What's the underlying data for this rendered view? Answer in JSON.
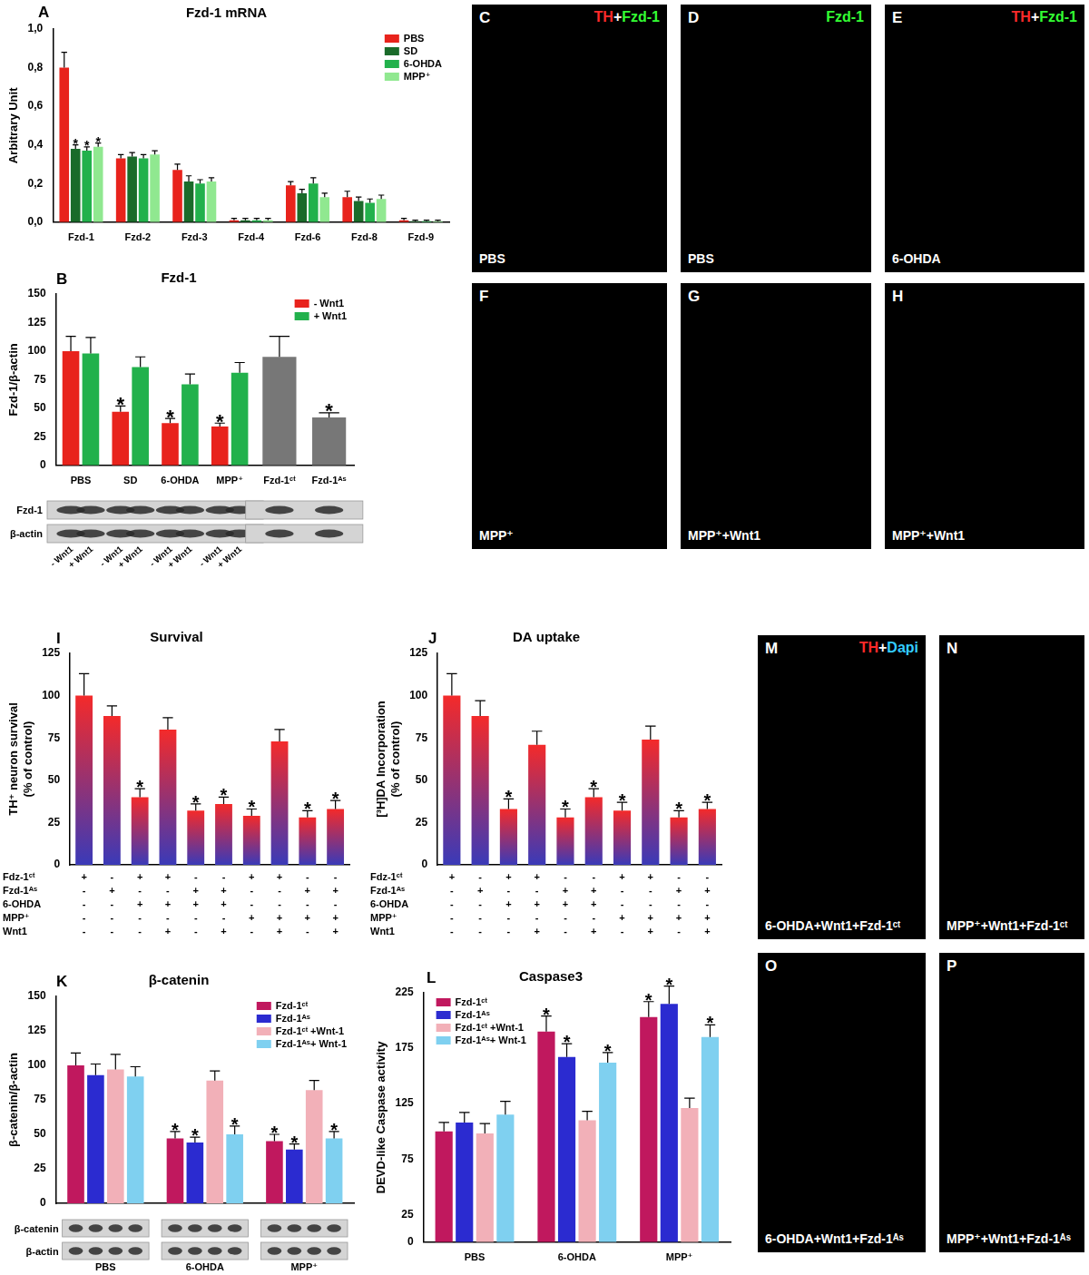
{
  "chart_data": [
    {
      "panel": "A",
      "type": "bar",
      "title": "Fzd-1 mRNA",
      "y_label": "Arbitrary Unit",
      "categories": [
        "Fzd-1",
        "Fzd-2",
        "Fzd-3",
        "Fzd-4",
        "Fzd-6",
        "Fzd-8",
        "Fzd-9"
      ],
      "series": [
        {
          "name": "PBS",
          "color": "#e8231c",
          "values": [
            0.8,
            0.33,
            0.27,
            0.01,
            0.19,
            0.13,
            0.01
          ],
          "errors": [
            0.08,
            0.02,
            0.03,
            0.01,
            0.02,
            0.03,
            0.01
          ]
        },
        {
          "name": "SD",
          "color": "#1a6b2a",
          "values": [
            0.38,
            0.34,
            0.21,
            0.01,
            0.15,
            0.11,
            0.005
          ],
          "errors": [
            0.02,
            0.02,
            0.03,
            0.01,
            0.02,
            0.02,
            0.005
          ],
          "marks": [
            "*",
            null,
            null,
            null,
            null,
            null,
            null
          ]
        },
        {
          "name": "6-OHDA",
          "color": "#22b14c",
          "values": [
            0.37,
            0.33,
            0.2,
            0.01,
            0.2,
            0.1,
            0.005
          ],
          "errors": [
            0.02,
            0.02,
            0.02,
            0.01,
            0.03,
            0.02,
            0.005
          ],
          "marks": [
            "*",
            null,
            null,
            null,
            null,
            null,
            null
          ]
        },
        {
          "name": "MPP⁺",
          "color": "#90e890",
          "values": [
            0.39,
            0.35,
            0.21,
            0.01,
            0.13,
            0.12,
            0.005
          ],
          "errors": [
            0.02,
            0.02,
            0.02,
            0.01,
            0.02,
            0.02,
            0.005
          ],
          "marks": [
            "*",
            null,
            null,
            null,
            null,
            null,
            null
          ]
        }
      ],
      "ylim": [
        0,
        1
      ],
      "yticks": [
        {
          "value": 0,
          "label": "0,0"
        },
        {
          "value": 0.2,
          "label": "0,2"
        },
        {
          "value": 0.4,
          "label": "0,4"
        },
        {
          "value": 0.6,
          "label": "0,6"
        },
        {
          "value": 0.8,
          "label": "0,8"
        },
        {
          "value": 1,
          "label": "1,0"
        }
      ],
      "grid": false,
      "legend": "top right"
    },
    {
      "panel": "B",
      "type": "bar",
      "title": "Fzd-1",
      "y_label": "Fzd-1/β-actin",
      "categories": [
        "PBS",
        "SD",
        "6-OHDA",
        "MPP⁺",
        "Fzd-1ᶜᵗ",
        "Fzd-1ᴬˢ"
      ],
      "series": [
        {
          "name": "- Wnt1",
          "color": "#e8231c",
          "values": [
            100,
            47,
            37,
            34,
            null,
            null
          ],
          "errors": [
            13,
            5,
            4,
            3,
            null,
            null
          ],
          "marks": [
            null,
            "*",
            "*",
            "*",
            null,
            null
          ]
        },
        {
          "name": "+ Wnt1",
          "color": "#22b14c",
          "values": [
            98,
            86,
            71,
            81,
            null,
            null
          ],
          "errors": [
            14,
            9,
            9,
            9,
            null,
            null
          ]
        },
        {
          "color": "#777777",
          "values": [
            null,
            null,
            null,
            null,
            95,
            42
          ],
          "errors": [
            null,
            null,
            null,
            null,
            18,
            4
          ],
          "marks": [
            null,
            null,
            null,
            null,
            null,
            "*"
          ]
        }
      ],
      "ylim": [
        0,
        150
      ],
      "yticks": [
        0,
        25,
        50,
        75,
        100,
        125,
        150
      ],
      "grid": false,
      "legend": "top right"
    },
    {
      "panel": "I",
      "type": "bar",
      "title": "Survival",
      "y_label": [
        "TH⁺ neuron survival",
        "(% of control)"
      ],
      "categories": [
        null,
        null,
        null,
        null,
        null,
        null,
        null,
        null,
        null,
        null
      ],
      "series": [
        {
          "color": "#f42a2a",
          "values": [
            100,
            88,
            40,
            80,
            32,
            36,
            29,
            73,
            28,
            33
          ],
          "errors": [
            13,
            6,
            5,
            7,
            4,
            4,
            4,
            7,
            4,
            5
          ],
          "marks": [
            null,
            null,
            "*",
            null,
            "*",
            "*",
            "*",
            null,
            "*",
            "*"
          ]
        }
      ],
      "conditions": [
        {
          "label": "Fdz-1ᶜᵗ",
          "values": [
            "+",
            "-",
            "+",
            "+",
            "-",
            "-",
            "+",
            "+",
            "-",
            "-"
          ]
        },
        {
          "label": "Fzd-1ᴬˢ",
          "values": [
            "-",
            "+",
            "-",
            "-",
            "+",
            "+",
            "-",
            "-",
            "+",
            "+"
          ]
        },
        {
          "label": "6-OHDA",
          "values": [
            "-",
            "-",
            "+",
            "+",
            "+",
            "+",
            "-",
            "-",
            "-",
            "-"
          ]
        },
        {
          "label": "MPP⁺",
          "values": [
            "-",
            "-",
            "-",
            "-",
            "-",
            "-",
            "+",
            "+",
            "+",
            "+"
          ]
        },
        {
          "label": "Wnt1",
          "values": [
            "-",
            "-",
            "-",
            "+",
            "-",
            "+",
            "-",
            "+",
            "-",
            "+"
          ]
        }
      ],
      "ylim": [
        0,
        125
      ],
      "yticks": [
        0,
        25,
        50,
        75,
        100,
        125
      ],
      "grid": false,
      "tick_labels": "y"
    },
    {
      "panel": "J",
      "type": "bar",
      "title": "DA uptake",
      "y_label": [
        "[³H]DA Incorporation",
        "(% of control)"
      ],
      "categories": [
        null,
        null,
        null,
        null,
        null,
        null,
        null,
        null,
        null,
        null
      ],
      "series": [
        {
          "color": "#f42a2a",
          "values": [
            100,
            88,
            33,
            71,
            28,
            40,
            32,
            74,
            28,
            33
          ],
          "errors": [
            13,
            9,
            6,
            8,
            5,
            5,
            5,
            8,
            4,
            4
          ],
          "marks": [
            null,
            null,
            "*",
            null,
            "*",
            "*",
            "*",
            null,
            "*",
            "*"
          ]
        }
      ],
      "conditions": [
        {
          "label": "Fdz-1ᶜᵗ",
          "values": [
            "+",
            "-",
            "+",
            "+",
            "-",
            "-",
            "+",
            "+",
            "-",
            "-"
          ]
        },
        {
          "label": "Fzd-1ᴬˢ",
          "values": [
            "-",
            "+",
            "-",
            "-",
            "+",
            "+",
            "-",
            "-",
            "+",
            "+"
          ]
        },
        {
          "label": "6-OHDA",
          "values": [
            "-",
            "-",
            "+",
            "+",
            "+",
            "+",
            "-",
            "-",
            "-",
            "-"
          ]
        },
        {
          "label": "MPP⁺",
          "values": [
            "-",
            "-",
            "-",
            "-",
            "-",
            "-",
            "+",
            "+",
            "+",
            "+"
          ]
        },
        {
          "label": "Wnt1",
          "values": [
            "-",
            "-",
            "-",
            "+",
            "-",
            "+",
            "-",
            "+",
            "-",
            "+"
          ]
        }
      ],
      "ylim": [
        0,
        125
      ],
      "yticks": [
        0,
        25,
        50,
        75,
        100,
        125
      ],
      "grid": false,
      "tick_labels": "y"
    },
    {
      "panel": "K",
      "type": "bar",
      "title": "β-catenin",
      "y_label": "β-catenin/β-actin",
      "categories": [
        "PBS",
        "6-OHDA",
        "MPP⁺"
      ],
      "series": [
        {
          "name": "Fzd-1ᶜᵗ",
          "color": "#c0185e",
          "values": [
            100,
            47,
            45
          ],
          "errors": [
            9,
            5,
            5
          ],
          "marks": [
            null,
            "*",
            "*"
          ]
        },
        {
          "name": "Fzd-1ᴬˢ",
          "color": "#2b2bd0",
          "values": [
            93,
            44,
            39
          ],
          "errors": [
            8,
            4,
            4
          ],
          "marks": [
            null,
            "*",
            "*"
          ]
        },
        {
          "name": "Fzd-1ᶜᵗ +Wnt-1",
          "color": "#f2b0b8",
          "values": [
            97,
            89,
            82
          ],
          "errors": [
            11,
            7,
            7
          ]
        },
        {
          "name": "Fzd-1ᴬˢ+ Wnt-1",
          "color": "#7fd0f0",
          "values": [
            92,
            50,
            47
          ],
          "errors": [
            7,
            6,
            5
          ],
          "marks": [
            null,
            "*",
            "*"
          ]
        }
      ],
      "ylim": [
        0,
        150
      ],
      "yticks": [
        0,
        25,
        50,
        75,
        100,
        125,
        150
      ],
      "grid": false,
      "legend": "top right",
      "tick_labels": "y"
    },
    {
      "panel": "L",
      "type": "bar",
      "title": "Caspase3",
      "y_label": "DEVD-like Caspase activity",
      "categories": [
        "PBS",
        "6-OHDA",
        "MPP⁺"
      ],
      "series": [
        {
          "name": "Fzd-1ᶜᵗ",
          "color": "#c0185e",
          "values": [
            100,
            190,
            203
          ],
          "errors": [
            8,
            14,
            14
          ],
          "marks": [
            null,
            "*",
            "*"
          ]
        },
        {
          "name": "Fzd-1ᴬˢ",
          "color": "#2b2bd0",
          "values": [
            108,
            167,
            215
          ],
          "errors": [
            9,
            12,
            16
          ],
          "marks": [
            null,
            "*",
            "*"
          ]
        },
        {
          "name": "Fzd-1ᶜᵗ +Wnt-1",
          "color": "#f2b0b8",
          "values": [
            98,
            110,
            121
          ],
          "errors": [
            9,
            8,
            9
          ]
        },
        {
          "name": "Fzd-1ᴬˢ+ Wnt-1",
          "color": "#7fd0f0",
          "values": [
            115,
            162,
            185
          ],
          "errors": [
            12,
            9,
            11
          ],
          "marks": [
            null,
            "*",
            "*"
          ]
        }
      ],
      "ylim": [
        0,
        225
      ],
      "yticks": [
        0,
        25,
        75,
        125,
        175,
        225
      ],
      "grid": false,
      "legend": "top left"
    }
  ],
  "image_panels": [
    {
      "panel": "C",
      "heading": [
        {
          "text": "TH",
          "color": "#ff2a2a"
        },
        {
          "text": "+",
          "color": "#ffffff"
        },
        {
          "text": "Fzd-1",
          "color": "#33ff33"
        }
      ],
      "caption": "PBS"
    },
    {
      "panel": "D",
      "heading": [
        {
          "text": "Fzd-1",
          "color": "#33ff33"
        }
      ],
      "caption": "PBS"
    },
    {
      "panel": "E",
      "heading": [
        {
          "text": "TH",
          "color": "#ff2a2a"
        },
        {
          "text": "+",
          "color": "#ffffff"
        },
        {
          "text": "Fzd-1",
          "color": "#33ff33"
        }
      ],
      "caption": "6-OHDA"
    },
    {
      "panel": "F",
      "caption": "MPP⁺"
    },
    {
      "panel": "G",
      "caption": "MPP⁺+Wnt1"
    },
    {
      "panel": "H",
      "caption": "MPP⁺+Wnt1"
    },
    {
      "panel": "M",
      "heading": [
        {
          "text": "TH",
          "color": "#ff2a2a"
        },
        {
          "text": "+",
          "color": "#ffffff"
        },
        {
          "text": "Dapi",
          "color": "#33ccff"
        }
      ],
      "caption": "6-OHDA+Wnt1+Fzd-1ᶜᵗ"
    },
    {
      "panel": "N",
      "caption": "MPP⁺+Wnt1+Fzd-1ᶜᵗ"
    },
    {
      "panel": "O",
      "caption": "6-OHDA+Wnt1+Fzd-1ᴬˢ"
    },
    {
      "panel": "P",
      "caption": "MPP⁺+Wnt1+Fzd-1ᴬˢ"
    }
  ],
  "blots": [
    {
      "panel": "B",
      "rows": [
        "Fzd-1",
        "β-actin"
      ],
      "lane_labels": [
        "- Wnt1",
        "+ Wnt1",
        "- Wnt1",
        "+ Wnt1",
        "- Wnt1",
        "+ Wnt1",
        "- Wnt1",
        "+ Wnt1"
      ]
    },
    {
      "panel": "K",
      "rows": [
        "β-catenin",
        "β-actin"
      ]
    }
  ]
}
